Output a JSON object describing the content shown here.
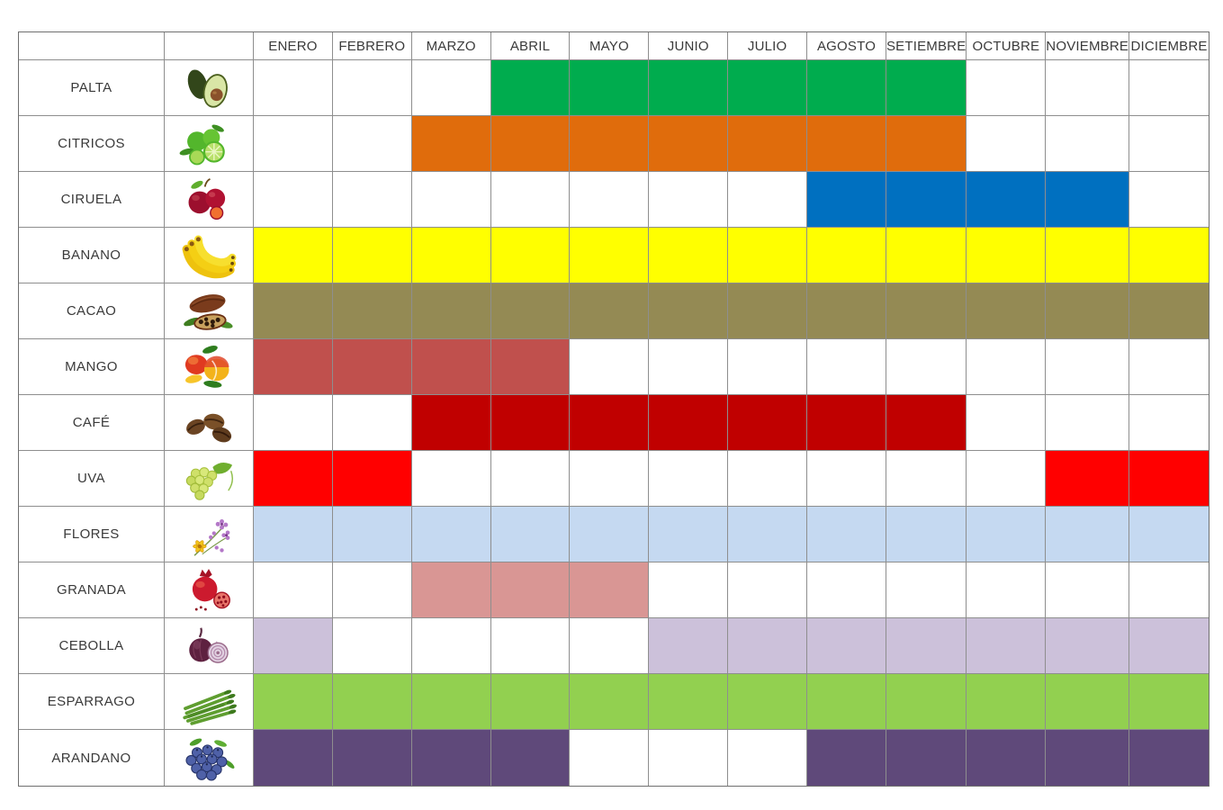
{
  "chart_data": {
    "type": "heatmap",
    "title": "",
    "description": "Seasonal availability calendar of crops by month; 1 = in-season (colored cell), 0 = off-season (white cell)",
    "categories": [
      "ENERO",
      "FEBRERO",
      "MARZO",
      "ABRIL",
      "MAYO",
      "JUNIO",
      "JULIO",
      "AGOSTO",
      "SETIEMBRE",
      "OCTUBRE",
      "NOVIEMBRE",
      "DICIEMBRE"
    ],
    "legend": "none",
    "grid": true,
    "series": [
      {
        "name": "PALTA",
        "icon": "avocado-icon",
        "color": "#00AC4E",
        "values": [
          0,
          0,
          0,
          1,
          1,
          1,
          1,
          1,
          1,
          0,
          0,
          0
        ]
      },
      {
        "name": "CITRICOS",
        "icon": "limes-icon",
        "color": "#E06C0C",
        "values": [
          0,
          0,
          1,
          1,
          1,
          1,
          1,
          1,
          1,
          0,
          0,
          0
        ]
      },
      {
        "name": "CIRUELA",
        "icon": "plums-icon",
        "color": "#0070C0",
        "values": [
          0,
          0,
          0,
          0,
          0,
          0,
          0,
          1,
          1,
          1,
          1,
          0
        ]
      },
      {
        "name": "BANANO",
        "icon": "bananas-icon",
        "color": "#FFFF00",
        "values": [
          1,
          1,
          1,
          1,
          1,
          1,
          1,
          1,
          1,
          1,
          1,
          1
        ]
      },
      {
        "name": "CACAO",
        "icon": "cacao-icon",
        "color": "#948A54",
        "values": [
          1,
          1,
          1,
          1,
          1,
          1,
          1,
          1,
          1,
          1,
          1,
          1
        ]
      },
      {
        "name": "MANGO",
        "icon": "mango-icon",
        "color": "#C0504D",
        "values": [
          1,
          1,
          1,
          1,
          0,
          0,
          0,
          0,
          0,
          0,
          0,
          0
        ]
      },
      {
        "name": "CAFÉ",
        "icon": "coffee-beans-icon",
        "color": "#C00000",
        "values": [
          0,
          0,
          1,
          1,
          1,
          1,
          1,
          1,
          1,
          0,
          0,
          0
        ]
      },
      {
        "name": "UVA",
        "icon": "grapes-icon",
        "color": "#FF0000",
        "values": [
          1,
          1,
          0,
          0,
          0,
          0,
          0,
          0,
          0,
          0,
          1,
          1
        ]
      },
      {
        "name": "FLORES",
        "icon": "flowers-icon",
        "color": "#C5D9F1",
        "values": [
          1,
          1,
          1,
          1,
          1,
          1,
          1,
          1,
          1,
          1,
          1,
          1
        ]
      },
      {
        "name": "GRANADA",
        "icon": "pomegranate-icon",
        "color": "#D99694",
        "values": [
          0,
          0,
          1,
          1,
          1,
          0,
          0,
          0,
          0,
          0,
          0,
          0
        ]
      },
      {
        "name": "CEBOLLA",
        "icon": "red-onion-icon",
        "color": "#CCC1DA",
        "values": [
          1,
          0,
          0,
          0,
          0,
          1,
          1,
          1,
          1,
          1,
          1,
          1
        ]
      },
      {
        "name": "ESPARRAGO",
        "icon": "asparagus-icon",
        "color": "#92D050",
        "values": [
          1,
          1,
          1,
          1,
          1,
          1,
          1,
          1,
          1,
          1,
          1,
          1
        ]
      },
      {
        "name": "ARANDANO",
        "icon": "blueberries-icon",
        "color": "#5F497A",
        "values": [
          1,
          1,
          1,
          1,
          0,
          0,
          0,
          1,
          1,
          1,
          1,
          1
        ]
      }
    ]
  }
}
